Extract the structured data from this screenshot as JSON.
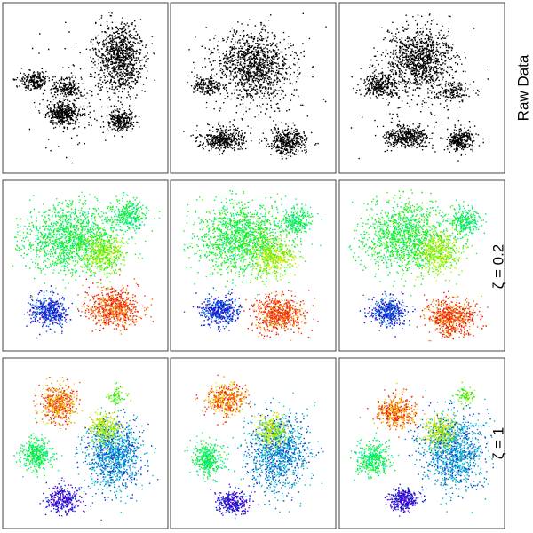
{
  "chart_data": {
    "type": "scatter",
    "layout": "3x3 grid of embedding scatter panels",
    "axes": "none",
    "grid": false,
    "legend": "none",
    "rows": [
      {
        "label": "Raw Data",
        "coloring": "monochrome",
        "color": "#000000",
        "panels": [
          {
            "column": 1,
            "clusters": [
              {
                "cx": 0.72,
                "cy": 0.3,
                "rx": 0.15,
                "ry": 0.22,
                "n": 900,
                "tone": 0.5
              },
              {
                "cx": 0.17,
                "cy": 0.45,
                "rx": 0.1,
                "ry": 0.06,
                "n": 220,
                "tone": 0.5
              },
              {
                "cx": 0.38,
                "cy": 0.5,
                "rx": 0.09,
                "ry": 0.06,
                "n": 200,
                "tone": 0.5
              },
              {
                "cx": 0.35,
                "cy": 0.66,
                "rx": 0.1,
                "ry": 0.07,
                "n": 420,
                "tone": 0.5
              },
              {
                "cx": 0.73,
                "cy": 0.7,
                "rx": 0.08,
                "ry": 0.07,
                "n": 280,
                "tone": 0.5
              },
              {
                "cx": 0.5,
                "cy": 0.55,
                "rx": 0.4,
                "ry": 0.35,
                "n": 160,
                "tone": 0.5
              }
            ]
          },
          {
            "column": 2,
            "clusters": [
              {
                "cx": 0.5,
                "cy": 0.35,
                "rx": 0.25,
                "ry": 0.2,
                "n": 1100,
                "tone": 0.5
              },
              {
                "cx": 0.3,
                "cy": 0.82,
                "rx": 0.14,
                "ry": 0.07,
                "n": 380,
                "tone": 0.5
              },
              {
                "cx": 0.72,
                "cy": 0.83,
                "rx": 0.12,
                "ry": 0.08,
                "n": 380,
                "tone": 0.5
              },
              {
                "cx": 0.2,
                "cy": 0.48,
                "rx": 0.1,
                "ry": 0.06,
                "n": 160,
                "tone": 0.5
              },
              {
                "cx": 0.5,
                "cy": 0.55,
                "rx": 0.4,
                "ry": 0.35,
                "n": 140,
                "tone": 0.5
              }
            ]
          },
          {
            "column": 3,
            "clusters": [
              {
                "cx": 0.48,
                "cy": 0.32,
                "rx": 0.2,
                "ry": 0.2,
                "n": 1000,
                "tone": 0.5
              },
              {
                "cx": 0.22,
                "cy": 0.48,
                "rx": 0.12,
                "ry": 0.08,
                "n": 300,
                "tone": 0.5
              },
              {
                "cx": 0.4,
                "cy": 0.8,
                "rx": 0.14,
                "ry": 0.07,
                "n": 380,
                "tone": 0.5
              },
              {
                "cx": 0.75,
                "cy": 0.82,
                "rx": 0.09,
                "ry": 0.07,
                "n": 260,
                "tone": 0.5
              },
              {
                "cx": 0.7,
                "cy": 0.52,
                "rx": 0.1,
                "ry": 0.06,
                "n": 140,
                "tone": 0.5
              },
              {
                "cx": 0.5,
                "cy": 0.55,
                "rx": 0.4,
                "ry": 0.35,
                "n": 140,
                "tone": 0.5
              }
            ]
          }
        ]
      },
      {
        "label": "ζ = 0.2",
        "coloring": "rainbow",
        "panels": [
          {
            "column": 1,
            "clusters": [
              {
                "cx": 0.4,
                "cy": 0.33,
                "rx": 0.3,
                "ry": 0.22,
                "n": 1300,
                "tone": 0.48
              },
              {
                "cx": 0.6,
                "cy": 0.42,
                "rx": 0.15,
                "ry": 0.12,
                "n": 450,
                "tone": 0.33
              },
              {
                "cx": 0.78,
                "cy": 0.18,
                "rx": 0.12,
                "ry": 0.1,
                "n": 300,
                "tone": 0.5
              },
              {
                "cx": 0.26,
                "cy": 0.78,
                "rx": 0.12,
                "ry": 0.1,
                "n": 450,
                "tone": 0.82
              },
              {
                "cx": 0.68,
                "cy": 0.76,
                "rx": 0.17,
                "ry": 0.12,
                "n": 650,
                "tone": 0.05
              }
            ]
          },
          {
            "column": 2,
            "clusters": [
              {
                "cx": 0.42,
                "cy": 0.32,
                "rx": 0.3,
                "ry": 0.22,
                "n": 1300,
                "tone": 0.46
              },
              {
                "cx": 0.62,
                "cy": 0.44,
                "rx": 0.14,
                "ry": 0.12,
                "n": 450,
                "tone": 0.3
              },
              {
                "cx": 0.78,
                "cy": 0.22,
                "rx": 0.1,
                "ry": 0.09,
                "n": 260,
                "tone": 0.5
              },
              {
                "cx": 0.28,
                "cy": 0.78,
                "rx": 0.12,
                "ry": 0.09,
                "n": 450,
                "tone": 0.82
              },
              {
                "cx": 0.66,
                "cy": 0.8,
                "rx": 0.16,
                "ry": 0.11,
                "n": 600,
                "tone": 0.05
              }
            ]
          },
          {
            "column": 3,
            "clusters": [
              {
                "cx": 0.4,
                "cy": 0.32,
                "rx": 0.28,
                "ry": 0.22,
                "n": 1200,
                "tone": 0.46
              },
              {
                "cx": 0.6,
                "cy": 0.42,
                "rx": 0.14,
                "ry": 0.12,
                "n": 450,
                "tone": 0.3
              },
              {
                "cx": 0.78,
                "cy": 0.22,
                "rx": 0.1,
                "ry": 0.09,
                "n": 260,
                "tone": 0.5
              },
              {
                "cx": 0.28,
                "cy": 0.78,
                "rx": 0.12,
                "ry": 0.09,
                "n": 420,
                "tone": 0.82
              },
              {
                "cx": 0.68,
                "cy": 0.82,
                "rx": 0.16,
                "ry": 0.11,
                "n": 600,
                "tone": 0.05
              }
            ]
          }
        ]
      },
      {
        "label": "ζ = 1",
        "coloring": "rainbow",
        "panels": [
          {
            "column": 1,
            "clusters": [
              {
                "cx": 0.32,
                "cy": 0.25,
                "rx": 0.12,
                "ry": 0.12,
                "n": 500,
                "tone": 0.1
              },
              {
                "cx": 0.68,
                "cy": 0.57,
                "rx": 0.18,
                "ry": 0.22,
                "n": 1100,
                "tone": 0.72
              },
              {
                "cx": 0.62,
                "cy": 0.4,
                "rx": 0.1,
                "ry": 0.1,
                "n": 300,
                "tone": 0.25
              },
              {
                "cx": 0.18,
                "cy": 0.57,
                "rx": 0.1,
                "ry": 0.1,
                "n": 380,
                "tone": 0.5
              },
              {
                "cx": 0.35,
                "cy": 0.85,
                "rx": 0.1,
                "ry": 0.08,
                "n": 320,
                "tone": 0.88
              },
              {
                "cx": 0.7,
                "cy": 0.2,
                "rx": 0.06,
                "ry": 0.05,
                "n": 80,
                "tone": 0.36
              }
            ]
          },
          {
            "column": 2,
            "clusters": [
              {
                "cx": 0.32,
                "cy": 0.22,
                "rx": 0.12,
                "ry": 0.1,
                "n": 420,
                "tone": 0.1
              },
              {
                "cx": 0.65,
                "cy": 0.55,
                "rx": 0.2,
                "ry": 0.24,
                "n": 1100,
                "tone": 0.72
              },
              {
                "cx": 0.62,
                "cy": 0.42,
                "rx": 0.1,
                "ry": 0.1,
                "n": 300,
                "tone": 0.25
              },
              {
                "cx": 0.2,
                "cy": 0.6,
                "rx": 0.1,
                "ry": 0.1,
                "n": 380,
                "tone": 0.5
              },
              {
                "cx": 0.36,
                "cy": 0.87,
                "rx": 0.1,
                "ry": 0.07,
                "n": 300,
                "tone": 0.88
              }
            ]
          },
          {
            "column": 3,
            "clusters": [
              {
                "cx": 0.33,
                "cy": 0.3,
                "rx": 0.12,
                "ry": 0.1,
                "n": 450,
                "tone": 0.1
              },
              {
                "cx": 0.7,
                "cy": 0.55,
                "rx": 0.2,
                "ry": 0.24,
                "n": 1100,
                "tone": 0.72
              },
              {
                "cx": 0.62,
                "cy": 0.42,
                "rx": 0.1,
                "ry": 0.1,
                "n": 300,
                "tone": 0.25
              },
              {
                "cx": 0.18,
                "cy": 0.6,
                "rx": 0.1,
                "ry": 0.1,
                "n": 380,
                "tone": 0.5
              },
              {
                "cx": 0.38,
                "cy": 0.85,
                "rx": 0.1,
                "ry": 0.07,
                "n": 320,
                "tone": 0.88
              },
              {
                "cx": 0.78,
                "cy": 0.2,
                "rx": 0.06,
                "ry": 0.05,
                "n": 80,
                "tone": 0.36
              }
            ]
          }
        ]
      }
    ]
  }
}
